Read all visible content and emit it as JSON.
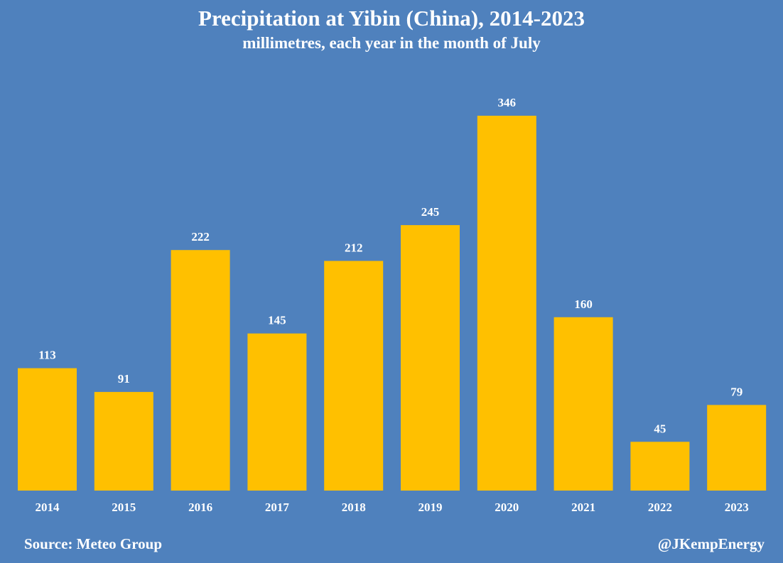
{
  "chart_data": {
    "type": "bar",
    "title": "Precipitation at Yibin (China), 2014-2023",
    "subtitle": "millimetres, each year in the month of July",
    "categories": [
      "2014",
      "2015",
      "2016",
      "2017",
      "2018",
      "2019",
      "2020",
      "2021",
      "2022",
      "2023"
    ],
    "values": [
      113,
      91,
      222,
      145,
      212,
      245,
      346,
      160,
      45,
      79
    ],
    "xlabel": "",
    "ylabel": "",
    "ylim": [
      0,
      400
    ],
    "grid": false,
    "legend": "none",
    "bar_color": "#ffc000",
    "background_color": "#4f81bd",
    "text_color": "#ffffff"
  },
  "footer": {
    "source": "Source: Meteo Group",
    "credit": "@JKempEnergy"
  }
}
